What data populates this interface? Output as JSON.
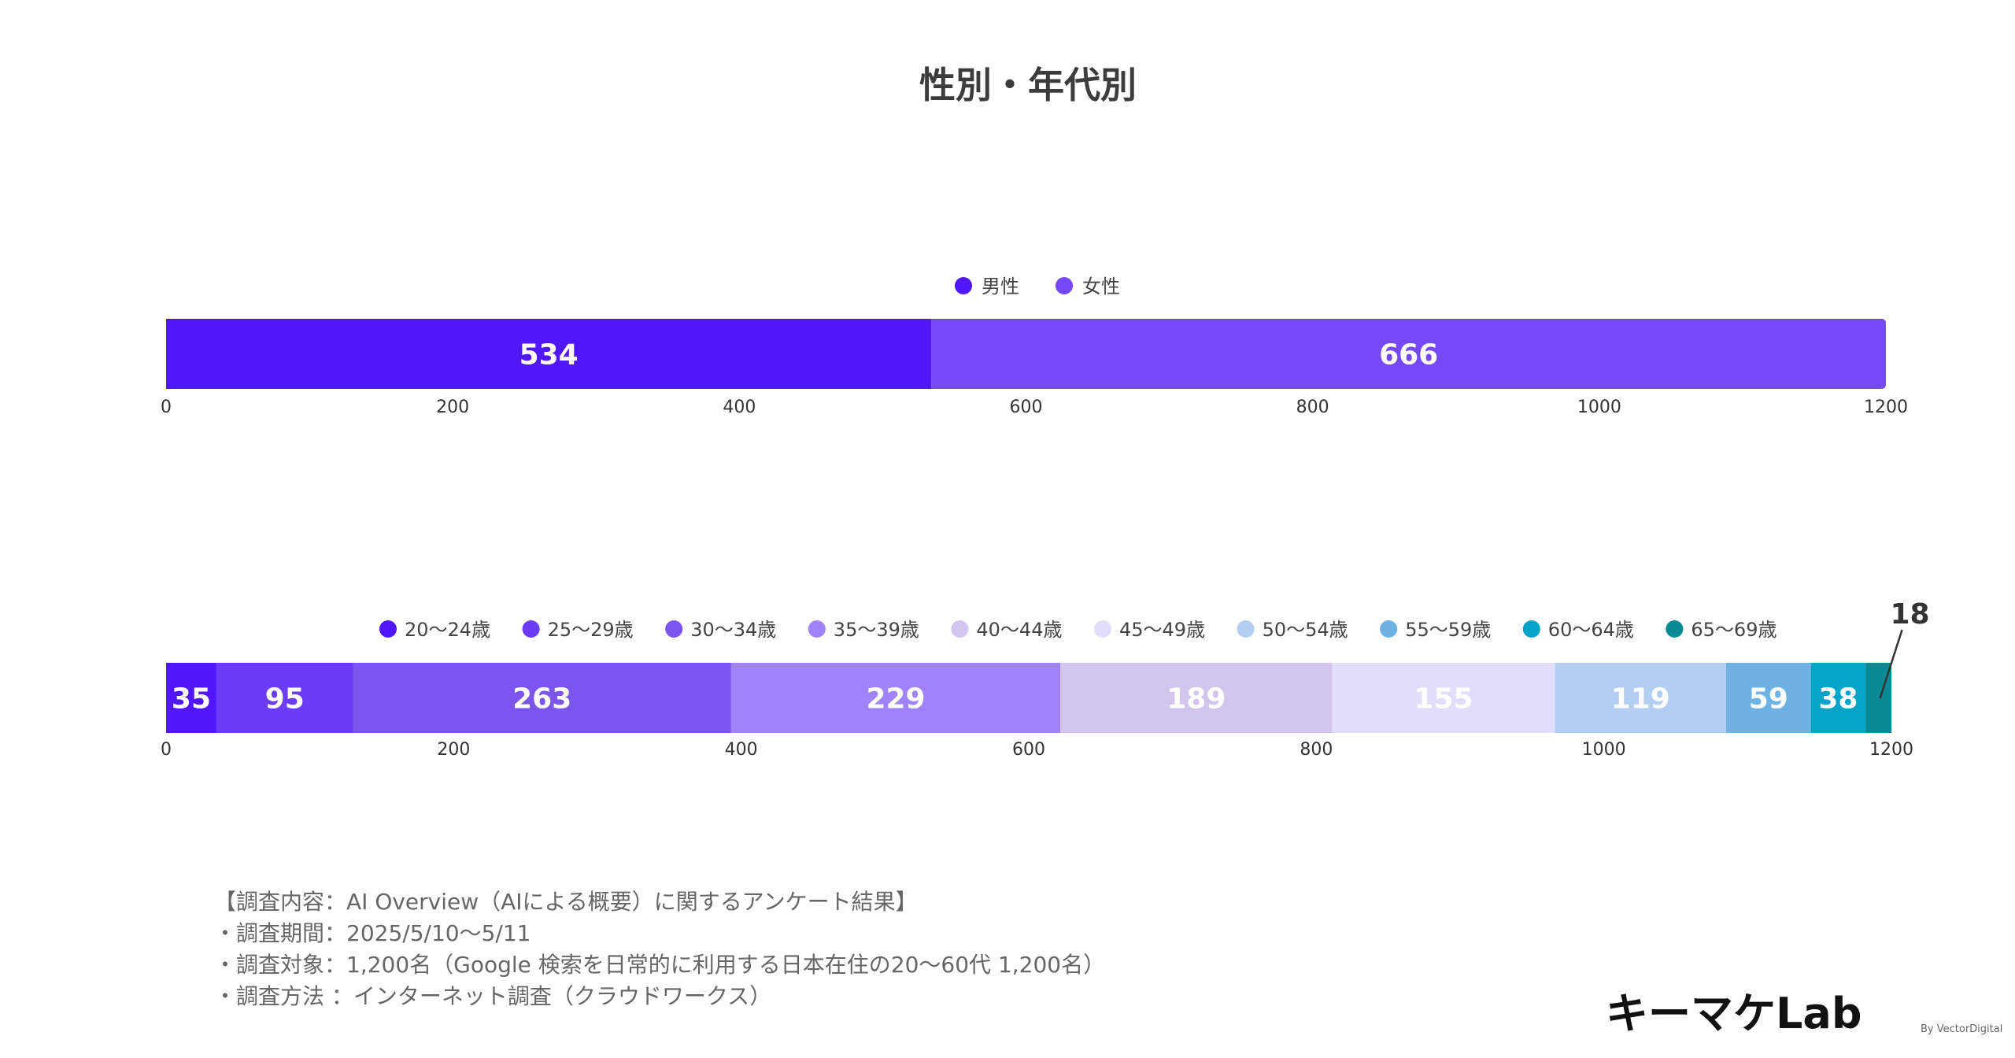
{
  "chart_data": [
    {
      "type": "bar",
      "orientation": "horizontal-stacked",
      "title": "性別・年代別",
      "xlim": [
        0,
        1200
      ],
      "ticks": [
        "0",
        "200",
        "400",
        "600",
        "800",
        "1000",
        "1200"
      ],
      "legend_position": "top-center",
      "series": [
        {
          "name": "男性",
          "value": 534,
          "color": "#4f17f9"
        },
        {
          "name": "女性",
          "value": 666,
          "color": "#7549f5"
        }
      ]
    },
    {
      "type": "bar",
      "orientation": "horizontal-stacked",
      "xlim": [
        0,
        1200
      ],
      "ticks": [
        "0",
        "200",
        "400",
        "600",
        "800",
        "1000",
        "1200"
      ],
      "legend_position": "top-center",
      "series": [
        {
          "name": "20〜24歳",
          "value": 35,
          "color": "#4f17f9"
        },
        {
          "name": "25〜29歳",
          "value": 95,
          "color": "#6b3cf6"
        },
        {
          "name": "30〜34歳",
          "value": 263,
          "color": "#7a55ee"
        },
        {
          "name": "35〜39歳",
          "value": 229,
          "color": "#a083fb"
        },
        {
          "name": "40〜44歳",
          "value": 189,
          "color": "#d2c6ef"
        },
        {
          "name": "45〜49歳",
          "value": 155,
          "color": "#e2ddfb"
        },
        {
          "name": "50〜54歳",
          "value": 119,
          "color": "#b4cef2"
        },
        {
          "name": "55〜59歳",
          "value": 59,
          "color": "#6eb2e4"
        },
        {
          "name": "60〜64歳",
          "value": 38,
          "color": "#06a3c9"
        },
        {
          "name": "65〜69歳",
          "value": 18,
          "color": "#0a8a95"
        }
      ]
    }
  ],
  "notes": [
    "【調査内容：AI Overview（AIによる概要）に関するアンケート結果】",
    "・調査期間：2025/5/10〜5/11",
    "・調査対象：1,200名（Google 検索を日常的に利用する日本在住の20〜60代 1,200名）",
    "・調査方法 ：インターネット調査（クラウドワークス）"
  ],
  "logo": {
    "text": "キーマケLab",
    "suffix": "By VectorDigital"
  }
}
